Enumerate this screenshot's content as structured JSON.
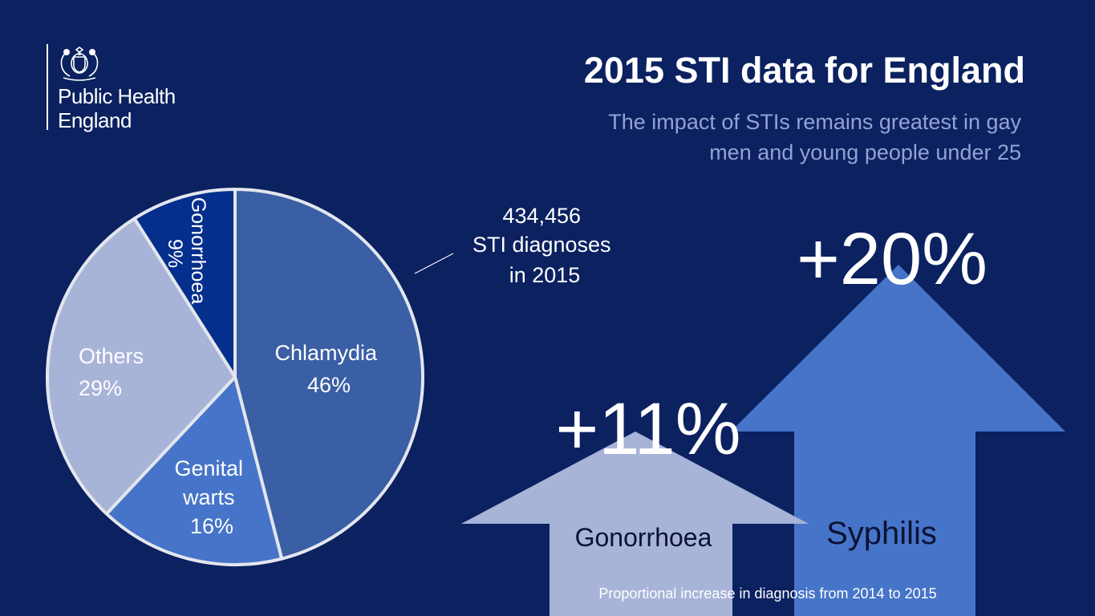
{
  "logo": {
    "line1": "Public Health",
    "line2": "England",
    "crest_icon": "royal-coat-of-arms-icon"
  },
  "title": "2015 STI data for England",
  "subtitle_line1": "The impact of STIs remains greatest in gay",
  "subtitle_line2": "men and young people under 25",
  "total_line1": "434,456",
  "total_line2": "STI diagnoses",
  "total_line3": "in 2015",
  "footnote": "Proportional increase in diagnosis from  2014 to 2015",
  "colors": {
    "background": "#0b2160",
    "chlamydia": "#3a5fa5",
    "genital_warts": "#4674c8",
    "others": "#a8b3d8",
    "gonorrhoea": "#052f8c",
    "gonorrhoea_arrow": "#a8b3d8",
    "syphilis_arrow": "#4674c8"
  },
  "chart_data": [
    {
      "type": "pie",
      "slices": [
        {
          "name": "Chlamydia",
          "value": 46,
          "label_lines": [
            "Chlamydia",
            "46%"
          ]
        },
        {
          "name": "Genital warts",
          "value": 16,
          "label_lines": [
            "Genital",
            "warts",
            "16%"
          ]
        },
        {
          "name": "Others",
          "value": 29,
          "label_lines": [
            "Others",
            "29%"
          ]
        },
        {
          "name": "Gonorrhoea",
          "value": 9,
          "label_lines": [
            "Gonorrhoea",
            "9%"
          ]
        }
      ]
    },
    {
      "type": "bar",
      "categories": [
        "Gonorrhoea",
        "Syphilis"
      ],
      "values": [
        11,
        20
      ],
      "labels": [
        "+11%",
        "+20%"
      ]
    }
  ]
}
